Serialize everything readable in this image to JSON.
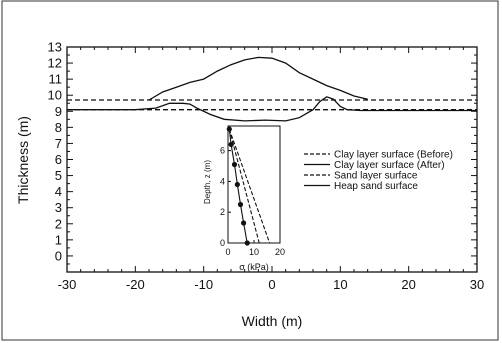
{
  "chart_data": [
    {
      "type": "line",
      "xlabel": "Width (m)",
      "ylabel": "Thickness (m)",
      "xlim": [
        -30,
        30
      ],
      "ylim": [
        -1,
        13
      ],
      "xticks": [
        -30,
        -20,
        -10,
        0,
        10,
        20,
        30
      ],
      "yticks": [
        0,
        1,
        2,
        3,
        4,
        5,
        6,
        7,
        8,
        9,
        10,
        11,
        12,
        13
      ],
      "grid": false,
      "legend_position": "center-right",
      "series": [
        {
          "name": "Clay layer surface (Before)",
          "style": "dashed",
          "x": [
            -30,
            30
          ],
          "y": [
            9.7,
            9.7
          ]
        },
        {
          "name": "Clay layer surface (After)",
          "style": "solid",
          "x": [
            -30,
            -20,
            -17,
            -15,
            -13,
            -12,
            -11,
            -9,
            -7,
            -4,
            -1,
            2,
            4,
            6,
            7,
            8,
            9,
            10,
            11,
            13,
            30
          ],
          "y": [
            9.1,
            9.1,
            9.2,
            9.5,
            9.5,
            9.45,
            9.2,
            8.8,
            8.5,
            8.4,
            8.45,
            8.4,
            8.6,
            9.1,
            9.6,
            9.9,
            9.75,
            9.3,
            9.1,
            9.05,
            9.05
          ]
        },
        {
          "name": "Sand layer surface",
          "style": "dashed",
          "x": [
            -30,
            30
          ],
          "y": [
            9.1,
            9.1
          ]
        },
        {
          "name": "Heap sand surface",
          "style": "solid",
          "x": [
            -18,
            -16,
            -14,
            -12,
            -10,
            -8,
            -6,
            -4,
            -2,
            0,
            2,
            4,
            6,
            8,
            10,
            12,
            14
          ],
          "y": [
            9.7,
            10.2,
            10.5,
            10.8,
            11.0,
            11.5,
            11.9,
            12.2,
            12.35,
            12.3,
            12.0,
            11.4,
            11.0,
            10.6,
            10.3,
            9.95,
            9.75
          ]
        }
      ]
    },
    {
      "type": "line",
      "xlabel": "σ (kPa)",
      "ylabel": "Depth, z (m)",
      "xlim": [
        0,
        20
      ],
      "ylim": [
        0,
        7.6
      ],
      "xticks": [
        0,
        10,
        20
      ],
      "yticks": [
        0,
        2,
        4,
        6
      ],
      "inverted_y": true,
      "series": [
        {
          "style": "solid-markers",
          "x": [
            0.5,
            1.2,
            2.5,
            3.6,
            4.8,
            6.0,
            7.4
          ],
          "y": [
            7.4,
            6.4,
            5.1,
            3.8,
            2.5,
            1.3,
            0
          ]
        },
        {
          "style": "dashed",
          "x": [
            0.5,
            16
          ],
          "y": [
            7.4,
            0
          ]
        },
        {
          "style": "dashed",
          "x": [
            0.5,
            12
          ],
          "y": [
            7.4,
            0
          ]
        }
      ]
    }
  ]
}
